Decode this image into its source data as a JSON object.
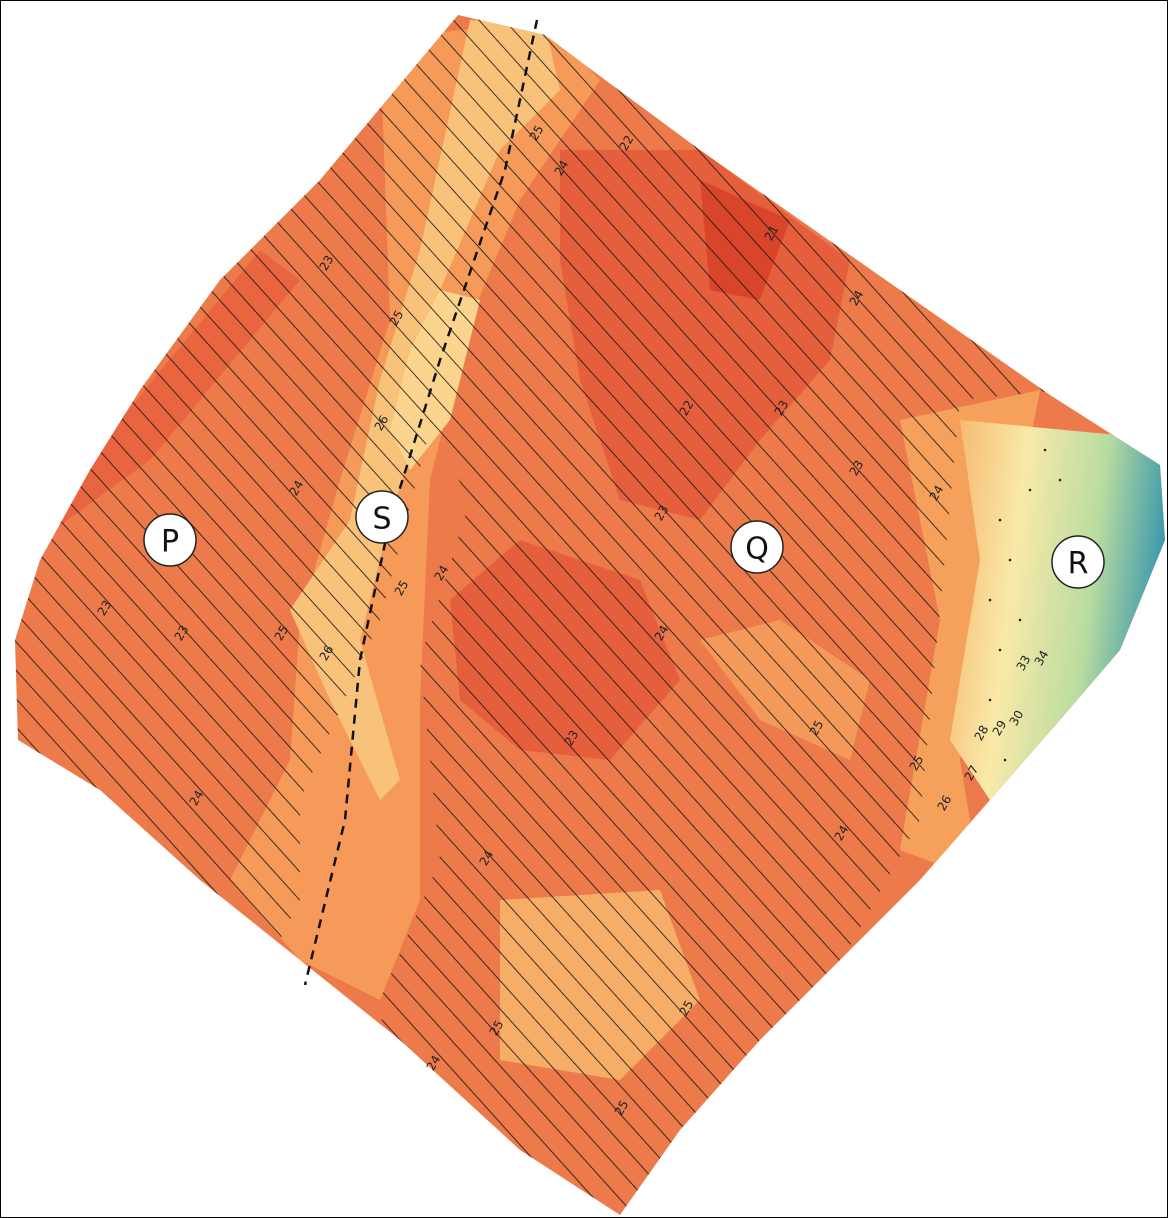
{
  "markers": [
    {
      "label": "P"
    },
    {
      "label": "S"
    },
    {
      "label": "Q"
    },
    {
      "label": "R"
    }
  ],
  "contour_labels": [
    "23",
    "25",
    "26",
    "24",
    "25",
    "26",
    "25",
    "23",
    "23",
    "24",
    "22",
    "21",
    "24",
    "22",
    "23",
    "23",
    "24",
    "23",
    "24",
    "24",
    "23",
    "25",
    "25",
    "24",
    "24",
    "25",
    "25",
    "24",
    "25",
    "25",
    "24",
    "26",
    "27",
    "28",
    "29",
    "30",
    "33",
    "34"
  ]
}
